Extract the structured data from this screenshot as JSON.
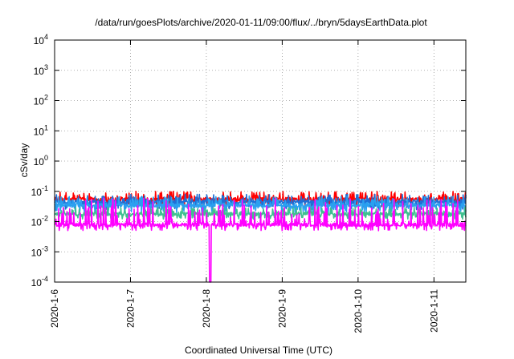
{
  "chart_data": {
    "type": "line",
    "title": "/data/run/goesPlots/archive/2020-01-11/09:00/flux/../bryn/5daysEarthData.plot",
    "xlabel": "Coordinated Universal Time (UTC)",
    "ylabel": "cSv/day",
    "yscale": "log",
    "ylim": [
      0.0001,
      10000
    ],
    "y_ticks": [
      {
        "value": 0.0001,
        "base": "10",
        "exp": "-4"
      },
      {
        "value": 0.001,
        "base": "10",
        "exp": "-3"
      },
      {
        "value": 0.01,
        "base": "10",
        "exp": "-2"
      },
      {
        "value": 0.1,
        "base": "10",
        "exp": "-1"
      },
      {
        "value": 1,
        "base": "10",
        "exp": "0"
      },
      {
        "value": 10,
        "base": "10",
        "exp": "1"
      },
      {
        "value": 100,
        "base": "10",
        "exp": "2"
      },
      {
        "value": 1000,
        "base": "10",
        "exp": "3"
      },
      {
        "value": 10000,
        "base": "10",
        "exp": "4"
      }
    ],
    "x_ticks": [
      "2020-1-6",
      "2020-1-7",
      "2020-1-8",
      "2020-1-9",
      "2020-1-10",
      "2020-1-11"
    ],
    "xlim_days": [
      0,
      5.42
    ],
    "grid": true,
    "legend": "none",
    "series": [
      {
        "color": "#ff0000",
        "low": 0.03,
        "high": 0.1,
        "typical": 0.055
      },
      {
        "color": "#1f6fd6",
        "low": 0.025,
        "high": 0.08,
        "typical": 0.045
      },
      {
        "color": "#2aa0f0",
        "low": 0.02,
        "high": 0.07,
        "typical": 0.035
      },
      {
        "color": "#40c090",
        "low": 0.012,
        "high": 0.03,
        "typical": 0.018
      },
      {
        "color": "#ff00ff",
        "low": 0.005,
        "high": 0.06,
        "typical": 0.008,
        "dropout_day": 2.05,
        "dropout_value": 0.0001
      }
    ]
  }
}
